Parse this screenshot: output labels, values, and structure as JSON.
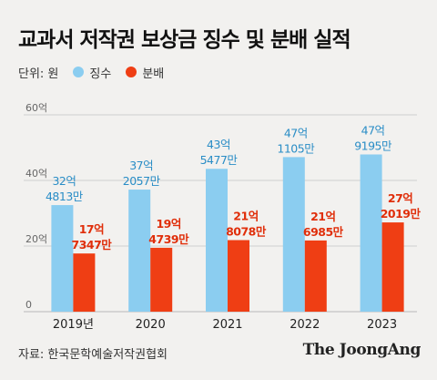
{
  "title": "교과서 저작권 보상금 징수 및 분배 실적",
  "unit_label": "단위: 원",
  "source": "자료: 한국문학예술저작권협회",
  "brand": "The JoongAng",
  "colors": {
    "background": "#f2f1ef",
    "collect": "#8bcdf0",
    "distribute": "#ef3e14",
    "collect_label": "#2a8dc6",
    "distribute_label": "#e02e0a",
    "grid": "#cfcfcf"
  },
  "chart_data": {
    "type": "bar",
    "title": "교과서 저작권 보상금 징수 및 분배 실적",
    "categories": [
      "2019년",
      "2020",
      "2021",
      "2022",
      "2023"
    ],
    "series": [
      {
        "name": "징수",
        "values": [
          3248130000,
          3720570000,
          4354770000,
          4711050000,
          4791950000
        ],
        "labels": [
          [
            "32억",
            "4813만"
          ],
          [
            "37억",
            "2057만"
          ],
          [
            "43억",
            "5477만"
          ],
          [
            "47억",
            "1105만"
          ],
          [
            "47억",
            "9195만"
          ]
        ]
      },
      {
        "name": "분배",
        "values": [
          1773470000,
          1947390000,
          2180780000,
          2169850000,
          2720190000
        ],
        "labels": [
          [
            "17억",
            "7347만"
          ],
          [
            "19억",
            "4739만"
          ],
          [
            "21억",
            "8078만"
          ],
          [
            "21억",
            "6985만"
          ],
          [
            "27억",
            "2019만"
          ]
        ]
      }
    ],
    "y_ticks": [
      "0",
      "20억",
      "40억",
      "60억"
    ],
    "ylim": [
      0,
      6000000000
    ],
    "grid": true,
    "legend": "top-left"
  }
}
